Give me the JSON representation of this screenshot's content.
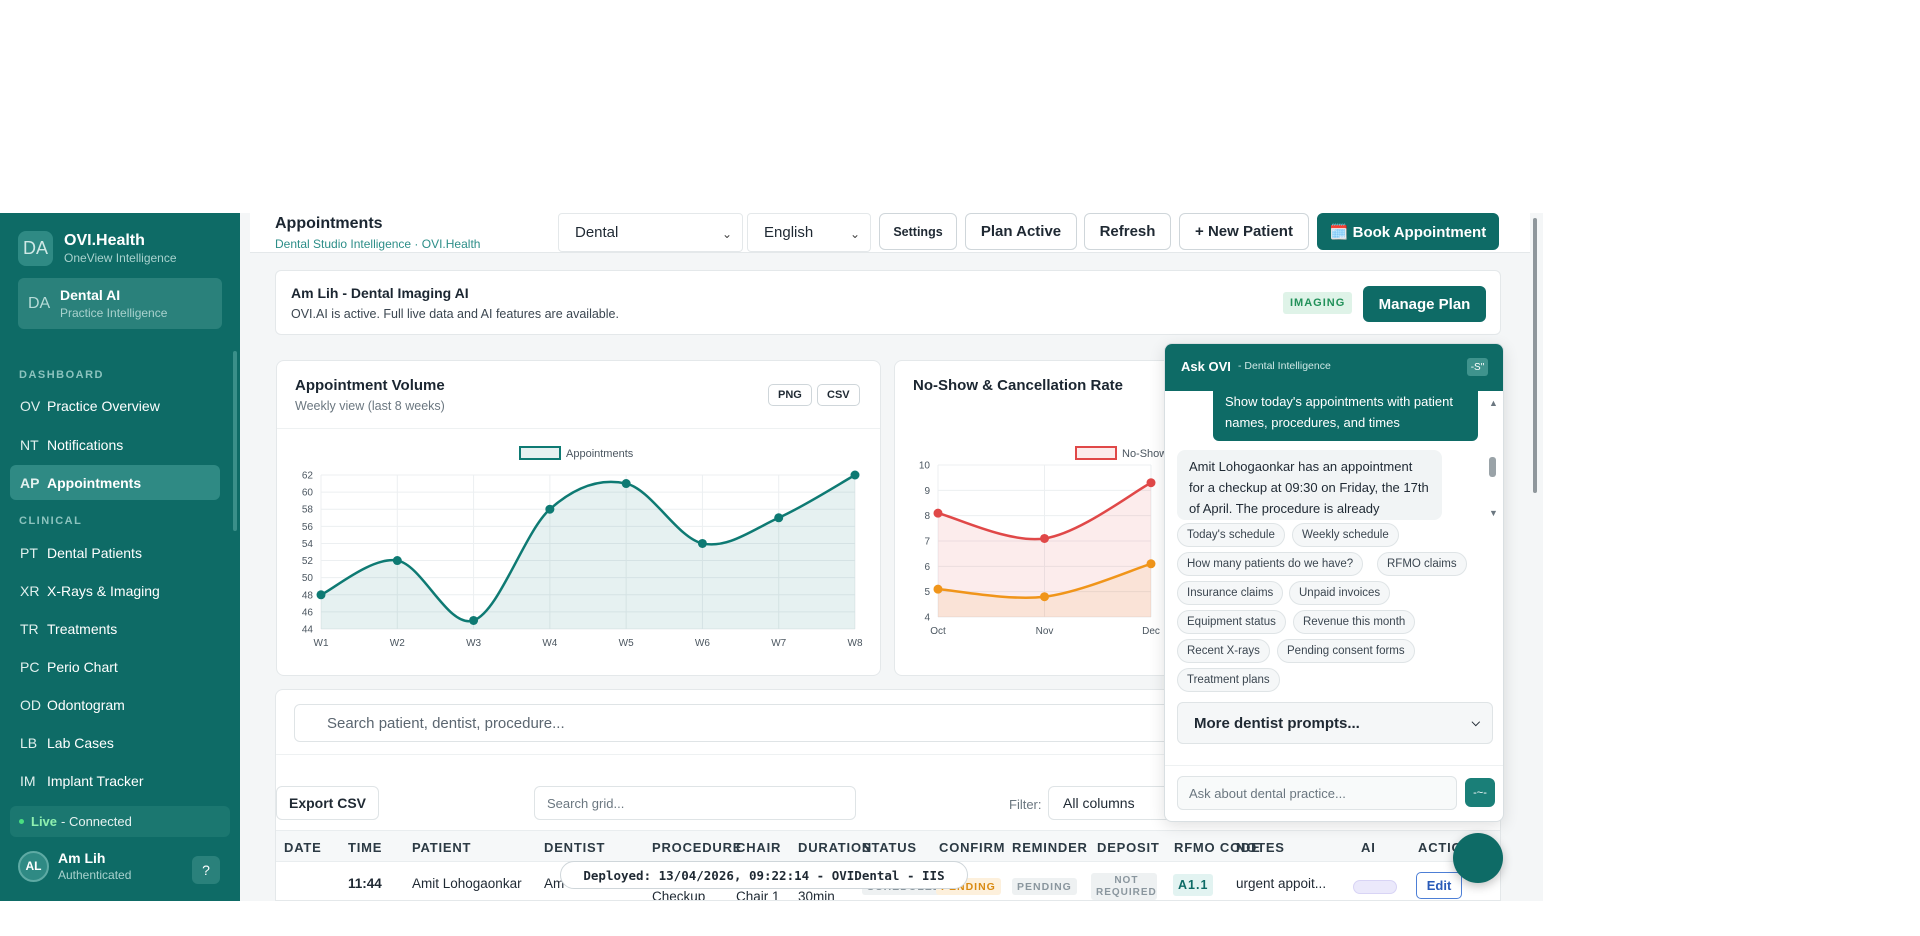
{
  "brand": {
    "avatar": "DA",
    "title": "OVI.Health",
    "subtitle": "OneView Intelligence"
  },
  "workspace": {
    "abbr": "DA",
    "title": "Dental AI",
    "subtitle": "Practice Intelligence"
  },
  "sidebar": {
    "section_dashboard": "DASHBOARD",
    "section_clinical": "CLINICAL",
    "items": [
      {
        "abbr": "OV",
        "label": "Practice Overview"
      },
      {
        "abbr": "NT",
        "label": "Notifications"
      },
      {
        "abbr": "AP",
        "label": "Appointments"
      },
      {
        "abbr": "PT",
        "label": "Dental Patients"
      },
      {
        "abbr": "XR",
        "label": "X-Rays & Imaging"
      },
      {
        "abbr": "TR",
        "label": "Treatments"
      },
      {
        "abbr": "PC",
        "label": "Perio Chart"
      },
      {
        "abbr": "OD",
        "label": "Odontogram"
      },
      {
        "abbr": "LB",
        "label": "Lab Cases"
      },
      {
        "abbr": "IM",
        "label": "Implant Tracker"
      }
    ],
    "status_live": "Live",
    "status_text": "- Connected",
    "user_avatar": "AL",
    "user_name": "Am Lih",
    "user_status": "Authenticated",
    "help": "?"
  },
  "header": {
    "title": "Appointments",
    "subtitle": "Dental Studio Intelligence · OVI.Health",
    "specialty_select": "Dental",
    "language_select": "English",
    "settings": "Settings",
    "plan": "Plan Active",
    "refresh": "Refresh",
    "new_patient": "+ New Patient",
    "book": "🗓️ Book Appointment"
  },
  "banner": {
    "title": "Am Lih - Dental Imaging AI",
    "text": "OVI.AI is active. Full live data and AI features are available.",
    "badge": "IMAGING",
    "manage": "Manage Plan"
  },
  "volume_card": {
    "title": "Appointment Volume",
    "subtitle": "Weekly view (last 8 weeks)",
    "png": "PNG",
    "csv": "CSV"
  },
  "noshow_card": {
    "title": "No-Show & Cancellation Rate"
  },
  "chart_data": [
    {
      "type": "area",
      "legend": "Appointments",
      "categories": [
        "W1",
        "W2",
        "W3",
        "W4",
        "W5",
        "W6",
        "W7",
        "W8"
      ],
      "series": [
        {
          "name": "Appointments",
          "values": [
            48,
            52,
            45,
            58,
            61,
            54,
            57,
            62
          ]
        }
      ],
      "yticks": [
        44,
        46,
        48,
        50,
        52,
        54,
        56,
        58,
        60,
        62
      ],
      "ylim": [
        44,
        62
      ],
      "color": "#0e7a73"
    },
    {
      "type": "line",
      "legend": "No-Show",
      "categories": [
        "Oct",
        "Nov",
        "Dec"
      ],
      "series": [
        {
          "name": "No-Show",
          "values": [
            8.1,
            7.1,
            9.3
          ],
          "color": "#e04848"
        },
        {
          "values": [
            5.1,
            4.8,
            6.1
          ],
          "color": "#f0951a"
        }
      ],
      "yticks": [
        4,
        5,
        6,
        7,
        8,
        9,
        10
      ],
      "ylim": [
        4,
        10
      ]
    }
  ],
  "grid": {
    "search_placeholder": "Search patient, dentist, procedure...",
    "export": "Export CSV",
    "grid_search": "Search grid...",
    "filter_label": "Filter:",
    "filter_value": "All columns",
    "columns": [
      "DATE",
      "TIME",
      "PATIENT",
      "DENTIST",
      "PROCEDURE",
      "CHAIR",
      "DURATION",
      "STATUS",
      "CONFIRM",
      "REMINDER",
      "DEPOSIT",
      "RFMO CODE",
      "NOTES",
      "AI",
      "ACTIONS"
    ],
    "row": {
      "time": "11:44",
      "patient": "Amit Lohogaonkar",
      "dentist": "Am Lih",
      "procedure": "Checkup",
      "chair": "Chair 1",
      "duration": "30min",
      "status": "SCHEDULED",
      "confirm": "PENDING",
      "reminder": "PENDING",
      "deposit": "NOT REQUIRED",
      "rfmo": "A1.1",
      "notes": "urgent appoit...",
      "action": "Edit"
    }
  },
  "deploy": "Deployed: 13/04/2026, 09:22:14 - OVIDental - IIS",
  "chat": {
    "title": "Ask OVI",
    "subtitle": "- Dental Intelligence",
    "close": "-S\"",
    "user_msg": "Show today's appointments with patient names, procedures, and times",
    "bot_msg": "Amit Lohogaonkar has an appointment for a checkup at 09:30 on Friday, the 17th of April. The procedure is already",
    "prompts": [
      "Today's schedule",
      "Weekly schedule",
      "How many patients do we have?",
      "RFMO claims",
      "Insurance claims",
      "Unpaid invoices",
      "Equipment status",
      "Revenue this month",
      "Recent X-rays",
      "Pending consent forms",
      "Treatment plans"
    ],
    "more": "More dentist prompts...",
    "input_placeholder": "Ask about dental practice...",
    "send": "-~-"
  }
}
